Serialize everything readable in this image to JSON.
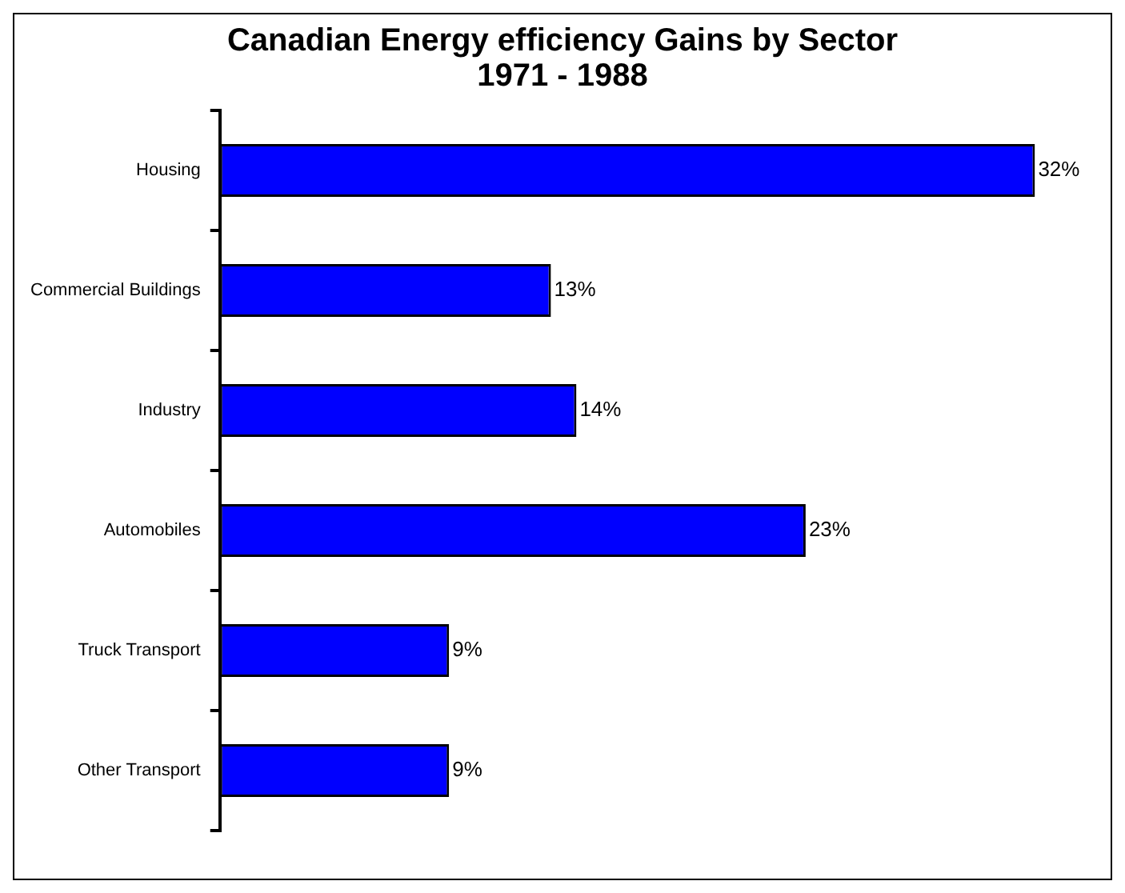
{
  "chart_data": {
    "type": "bar",
    "orientation": "horizontal",
    "tick_labels": "y",
    "title": "Canadian Energy efficiency Gains by Sector\n1971 - 1988",
    "categories": [
      "Housing",
      "Commercial Buildings",
      "Industry",
      "Automobiles",
      "Truck Transport",
      "Other Transport"
    ],
    "values": [
      32,
      13,
      14,
      23,
      9,
      9
    ],
    "value_labels": [
      "32%",
      "13%",
      "14%",
      "23%",
      "9%",
      "9%"
    ],
    "color": "#0000ff",
    "legend": false
  }
}
